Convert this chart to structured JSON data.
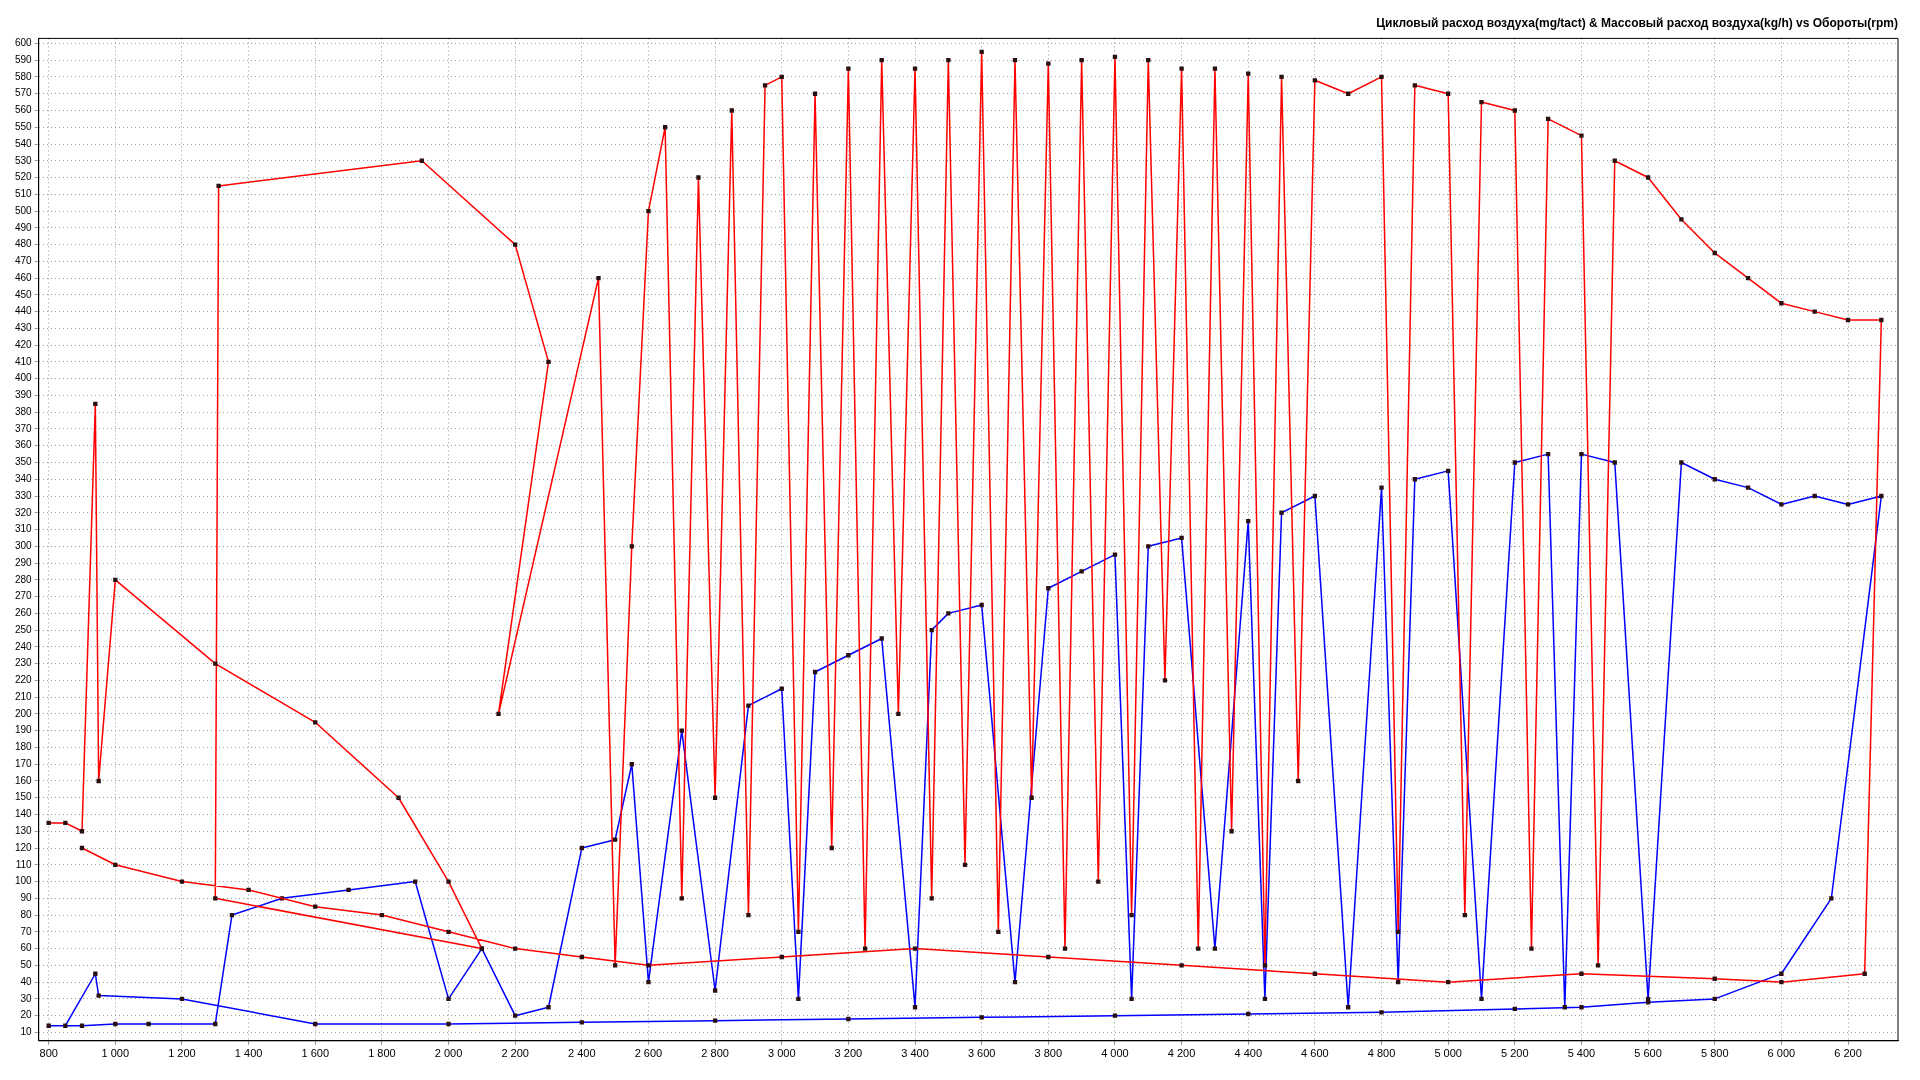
{
  "chart_data": {
    "type": "line",
    "title": "Цикловый расход воздуха(mg/tact) & Массовый расход воздуха(kg/h) vs Обороты(rpm)",
    "marker": "square",
    "grid": true,
    "legend": false,
    "line_style": "solid",
    "xlim": [
      770,
      6350
    ],
    "ylim": [
      5,
      603
    ],
    "xticks": [
      800,
      {
        "value": 1000,
        "label": "1 000"
      },
      {
        "value": 1200,
        "label": "1 200"
      },
      {
        "value": 1400,
        "label": "1 400"
      },
      {
        "value": 1600,
        "label": "1 600"
      },
      {
        "value": 1800,
        "label": "1 800"
      },
      {
        "value": 2000,
        "label": "2 000"
      },
      {
        "value": 2200,
        "label": "2 200"
      },
      {
        "value": 2400,
        "label": "2 400"
      },
      {
        "value": 2600,
        "label": "2 600"
      },
      {
        "value": 2800,
        "label": "2 800"
      },
      {
        "value": 3000,
        "label": "3 000"
      },
      {
        "value": 3200,
        "label": "3 200"
      },
      {
        "value": 3400,
        "label": "3 400"
      },
      {
        "value": 3600,
        "label": "3 600"
      },
      {
        "value": 3800,
        "label": "3 800"
      },
      {
        "value": 4000,
        "label": "4 000"
      },
      {
        "value": 4200,
        "label": "4 200"
      },
      {
        "value": 4400,
        "label": "4 400"
      },
      {
        "value": 4600,
        "label": "4 600"
      },
      {
        "value": 4800,
        "label": "4 800"
      },
      {
        "value": 5000,
        "label": "5 000"
      },
      {
        "value": 5200,
        "label": "5 200"
      },
      {
        "value": 5400,
        "label": "5 400"
      },
      {
        "value": 5600,
        "label": "5 600"
      },
      {
        "value": 5800,
        "label": "5 800"
      },
      {
        "value": 6000,
        "label": "6 000"
      },
      {
        "value": 6200,
        "label": "6 200"
      }
    ],
    "yticks": [
      10,
      20,
      30,
      40,
      50,
      60,
      70,
      80,
      90,
      100,
      110,
      120,
      130,
      140,
      150,
      160,
      170,
      180,
      190,
      200,
      210,
      220,
      230,
      240,
      250,
      260,
      270,
      280,
      290,
      300,
      310,
      320,
      330,
      340,
      350,
      360,
      370,
      380,
      390,
      400,
      410,
      420,
      430,
      440,
      450,
      460,
      470,
      480,
      490,
      500,
      510,
      520,
      530,
      540,
      550,
      560,
      570,
      580,
      590,
      600
    ],
    "series": [
      {
        "color": "#ff0000",
        "x": [
          800,
          850,
          900,
          940,
          950,
          1000,
          1300,
          1600,
          1850,
          2000,
          2100,
          1300,
          1310,
          1920,
          2200,
          2300,
          2150,
          2450,
          2500,
          2550,
          2600,
          2650,
          2700,
          2750,
          2800,
          2850,
          2900,
          2950,
          3000,
          3050,
          3100,
          3150,
          3200,
          3250,
          3300,
          3350,
          3400,
          3450,
          3500,
          3550,
          3600,
          3650,
          3700,
          3750,
          3800,
          3850,
          3900,
          3950,
          4000,
          4050,
          4100,
          4150,
          4200,
          4250,
          4300,
          4350,
          4400,
          4450,
          4500,
          4550,
          4600,
          4700,
          4800,
          4850,
          4900,
          5000,
          5050,
          5100,
          5200,
          5250,
          5300,
          5400,
          5450,
          5500,
          5600,
          5700,
          5800,
          5900,
          6000,
          6100,
          6200,
          6300,
          6250,
          6000,
          5800,
          5400,
          5000,
          4600,
          4200,
          3800,
          3400,
          3000,
          2600,
          2400,
          2200,
          2000,
          1800,
          1600,
          1400,
          1200,
          1000,
          900
        ],
        "values": [
          135,
          135,
          130,
          385,
          160,
          280,
          230,
          195,
          150,
          100,
          60,
          90,
          515,
          530,
          480,
          410,
          200,
          460,
          50,
          300,
          500,
          550,
          90,
          520,
          150,
          560,
          80,
          575,
          580,
          70,
          570,
          120,
          585,
          60,
          590,
          200,
          585,
          90,
          590,
          110,
          595,
          70,
          590,
          150,
          588,
          60,
          590,
          100,
          592,
          80,
          590,
          220,
          585,
          60,
          585,
          130,
          582,
          50,
          580,
          160,
          578,
          570,
          580,
          70,
          575,
          570,
          80,
          565,
          560,
          60,
          555,
          545,
          50,
          530,
          520,
          495,
          475,
          460,
          445,
          440,
          435,
          435,
          45,
          40,
          42,
          45,
          40,
          45,
          50,
          55,
          60,
          55,
          50,
          55,
          60,
          70,
          80,
          85,
          95,
          100,
          110,
          120
        ]
      },
      {
        "color": "#0000ff",
        "x": [
          800,
          900,
          1000,
          1100,
          1300,
          1350,
          1500,
          1700,
          1900,
          2000,
          2100,
          2200,
          2300,
          2400,
          2500,
          2550,
          2600,
          2700,
          2800,
          2900,
          3000,
          3050,
          3100,
          3200,
          3300,
          3400,
          3450,
          3500,
          3600,
          3700,
          3800,
          3900,
          4000,
          4050,
          4100,
          4200,
          4300,
          4400,
          4450,
          4500,
          4600,
          4700,
          4800,
          4850,
          4900,
          5000,
          5100,
          5200,
          5300,
          5350,
          5400,
          5500,
          5600,
          5700,
          5800,
          5900,
          6000,
          6100,
          6200,
          6300,
          6150,
          6000,
          5800,
          5600,
          5400,
          5200,
          4800,
          4400,
          4000,
          3600,
          3200,
          2800,
          2400,
          2000,
          1600,
          1200,
          950,
          940,
          850
        ],
        "values": [
          14,
          14,
          15,
          15,
          15,
          80,
          90,
          95,
          100,
          30,
          60,
          20,
          25,
          120,
          125,
          170,
          40,
          190,
          35,
          205,
          215,
          30,
          225,
          235,
          245,
          25,
          250,
          260,
          265,
          40,
          275,
          285,
          295,
          30,
          300,
          305,
          60,
          315,
          30,
          320,
          330,
          25,
          335,
          40,
          340,
          345,
          30,
          350,
          355,
          25,
          355,
          350,
          30,
          350,
          340,
          335,
          325,
          330,
          325,
          330,
          90,
          45,
          30,
          28,
          25,
          24,
          22,
          21,
          20,
          19,
          18,
          17,
          16,
          15,
          15,
          30,
          32,
          45,
          14
        ]
      }
    ]
  }
}
